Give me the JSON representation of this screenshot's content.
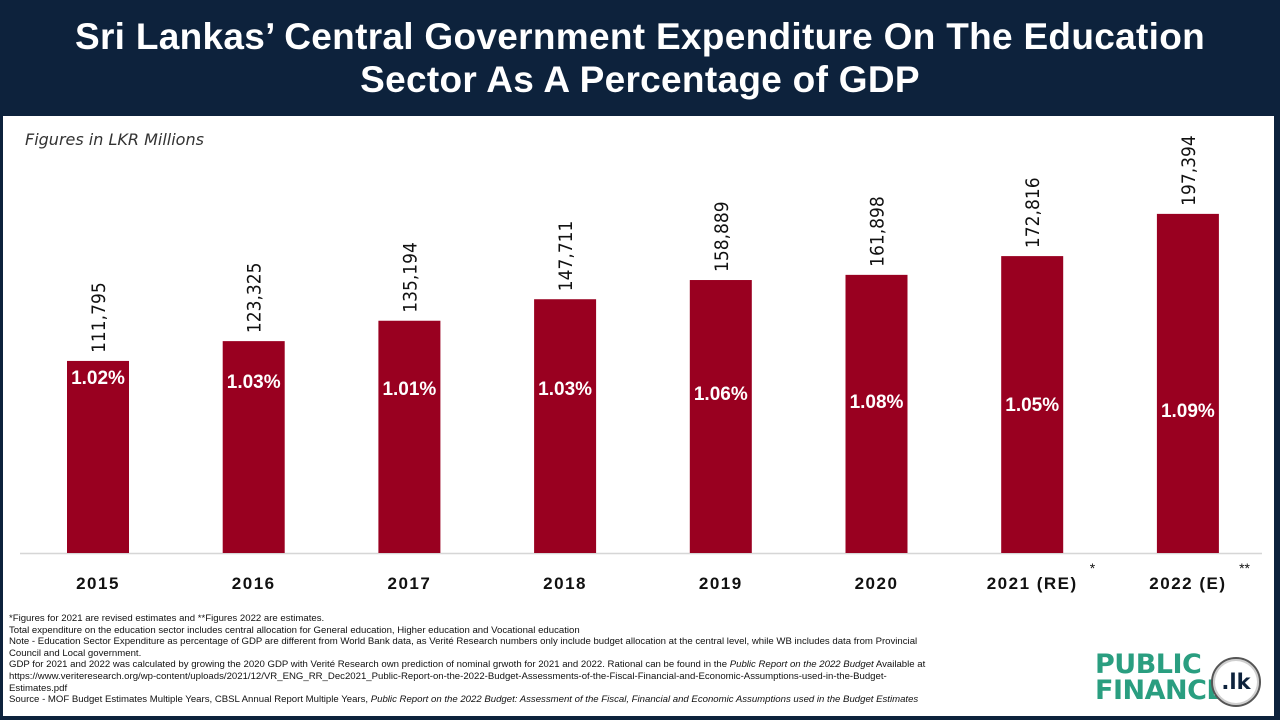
{
  "header": {
    "title_line1": "Sri Lankas’ Central Government Expenditure On The Education",
    "title_line2": "Sector As A Percentage of GDP"
  },
  "subtitle": "Figures in LKR Millions",
  "chart_data": {
    "type": "bar",
    "title": "Sri Lankas’ Central Government Expenditure On The Education Sector As A Percentage of GDP",
    "subtitle": "Figures in LKR Millions",
    "xlabel": "",
    "ylabel": "",
    "ylim": [
      0,
      200000
    ],
    "grid": false,
    "legend": "none",
    "bar_color": "#990020",
    "categories": [
      "2015",
      "2016",
      "2017",
      "2018",
      "2019",
      "2020",
      "2021 (RE)",
      "2022 (E)"
    ],
    "category_superscripts": [
      "",
      "",
      "",
      "",
      "",
      "",
      "*",
      "**"
    ],
    "values": [
      111795,
      123325,
      135194,
      147711,
      158889,
      161898,
      172816,
      197394
    ],
    "value_labels": [
      "111,795",
      "123,325",
      "135,194",
      "147,711",
      "158,889",
      "161,898",
      "172,816",
      "197,394"
    ],
    "pct_of_gdp": [
      "1.02%",
      "1.03%",
      "1.01%",
      "1.03%",
      "1.06%",
      "1.08%",
      "1.05%",
      "1.09%"
    ]
  },
  "notes": {
    "line1": "*Figures for 2021 are revised estimates and **Figures 2022 are estimates.",
    "line2": "Total expenditure on the education sector includes central allocation for General education, Higher education and Vocational education",
    "line3": "Note - Education Sector Expenditure as percentage of GDP are different from World Bank data, as Verité Research numbers only include budget allocation at the central level, while WB includes data from Provincial",
    "line4": "Council and Local government.",
    "line5a": "GDP for  2021 and 2022 was calculated by growing the 2020 GDP with Verité Research own prediction of nominal grwoth for 2021 and 2022. Rational can be found in the ",
    "line5b": "Public Report on the 2022 Budget",
    "line5c": "  Available at",
    "line6": "https://www.veriteresearch.org/wp-content/uploads/2021/12/VR_ENG_RR_Dec2021_Public-Report-on-the-2022-Budget-Assessments-of-the-Fiscal-Financial-and-Economic-Assumptions-used-in-the-Budget-",
    "line7": "Estimates.pdf",
    "line8a": "Source - MOF Budget Estimates Multiple Years, CBSL Annual Report Multiple Years, ",
    "line8b": "Public Report on the 2022 Budget: Assessment of the Fiscal, Financial and Economic Assumptions used in the Budget Estimates"
  },
  "logo": {
    "line1": "PUBLIC",
    "line2": "FINANCE",
    "badge": ".lk"
  }
}
